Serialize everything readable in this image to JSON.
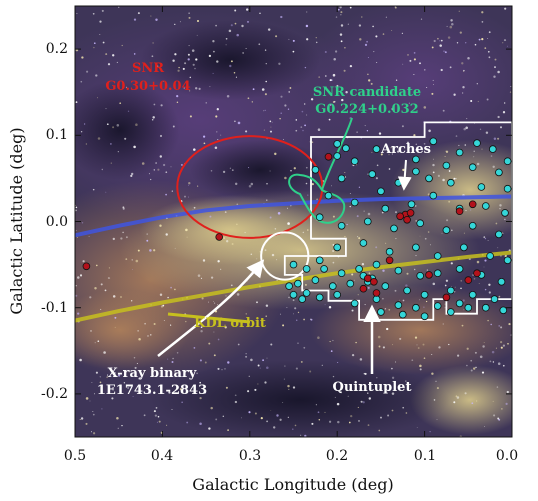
{
  "axes": {
    "xlabel": "Galactic Longitude (deg)",
    "ylabel": "Galactic Latitude (deg)",
    "xlim": [
      0.5,
      0.0
    ],
    "ylim": [
      -0.25,
      0.25
    ],
    "xticks": [
      "0.5",
      "0.4",
      "0.3",
      "0.2",
      "0.1",
      "0.0"
    ],
    "yticks": [
      "0.2",
      "0.1",
      "0.0",
      "-0.1",
      "-0.2"
    ]
  },
  "annotations": {
    "snr_title": "SNR",
    "snr_name": "G0.30+0.04",
    "snr_candidate_title": "SNR candidate",
    "snr_candidate_name": "G0.224+0.032",
    "arches": "Arches",
    "kdl_orbit": "KDL orbit",
    "xray_title": "X-ray binary",
    "xray_name": "1E1743.1-2843",
    "quintuplet": "Quintuplet"
  },
  "colors": {
    "snr": "#e0201c",
    "snr_candidate": "#2fd08a",
    "arches_track": "#3f55e0",
    "kdl_orbit": "#c7c01e",
    "outline": "#ffffff",
    "cyan_source": "#35d6d8",
    "red_source": "#b3121b"
  },
  "chart_data": {
    "type": "scatter",
    "xlabel": "Galactic Longitude (deg)",
    "ylabel": "Galactic Latitude (deg)",
    "xlim": [
      0.5,
      0.0
    ],
    "ylim": [
      -0.25,
      0.25
    ],
    "regions": {
      "snr_ellipse": {
        "l": 0.3,
        "b": 0.04,
        "rl": 0.083,
        "rb": 0.059
      },
      "xray_circle": {
        "l": 0.26,
        "b": -0.04,
        "r": 0.027
      },
      "survey_outline": [
        [
          0.23,
          0.098
        ],
        [
          0.1,
          0.098
        ],
        [
          0.1,
          0.115
        ],
        [
          0.0,
          0.115
        ],
        [
          0.0,
          -0.09
        ],
        [
          0.04,
          -0.09
        ],
        [
          0.04,
          -0.107
        ],
        [
          0.075,
          -0.107
        ],
        [
          0.075,
          -0.09
        ],
        [
          0.09,
          -0.09
        ],
        [
          0.09,
          -0.114
        ],
        [
          0.175,
          -0.114
        ],
        [
          0.175,
          -0.092
        ],
        [
          0.21,
          -0.092
        ],
        [
          0.21,
          -0.08
        ],
        [
          0.24,
          -0.08
        ],
        [
          0.24,
          -0.062
        ],
        [
          0.26,
          -0.062
        ],
        [
          0.26,
          -0.04
        ],
        [
          0.19,
          -0.04
        ],
        [
          0.19,
          -0.02
        ],
        [
          0.23,
          -0.02
        ],
        [
          0.23,
          0.098
        ]
      ]
    },
    "series": [
      {
        "name": "cyan",
        "points": [
          [
            0.09,
            0.093
          ],
          [
            0.06,
            0.08
          ],
          [
            0.04,
            0.091
          ],
          [
            0.022,
            0.084
          ],
          [
            0.075,
            0.065
          ],
          [
            0.045,
            0.063
          ],
          [
            0.015,
            0.057
          ],
          [
            0.11,
            0.072
          ],
          [
            0.155,
            0.084
          ],
          [
            0.2,
            0.076
          ],
          [
            0.18,
            0.07
          ],
          [
            0.225,
            0.06
          ],
          [
            0.195,
            0.05
          ],
          [
            0.16,
            0.055
          ],
          [
            0.13,
            0.045
          ],
          [
            0.095,
            0.05
          ],
          [
            0.07,
            0.045
          ],
          [
            0.035,
            0.04
          ],
          [
            0.005,
            0.038
          ],
          [
            0.21,
            0.03
          ],
          [
            0.18,
            0.022
          ],
          [
            0.145,
            0.015
          ],
          [
            0.115,
            0.02
          ],
          [
            0.06,
            0.015
          ],
          [
            0.03,
            0.018
          ],
          [
            0.008,
            0.01
          ],
          [
            0.22,
            0.005
          ],
          [
            0.195,
            -0.005
          ],
          [
            0.165,
            0.0
          ],
          [
            0.135,
            -0.008
          ],
          [
            0.105,
            -0.002
          ],
          [
            0.075,
            -0.01
          ],
          [
            0.045,
            -0.005
          ],
          [
            0.015,
            -0.015
          ],
          [
            0.2,
            -0.03
          ],
          [
            0.17,
            -0.025
          ],
          [
            0.14,
            -0.035
          ],
          [
            0.11,
            -0.03
          ],
          [
            0.085,
            -0.04
          ],
          [
            0.055,
            -0.03
          ],
          [
            0.025,
            -0.04
          ],
          [
            0.005,
            -0.045
          ],
          [
            0.25,
            -0.05
          ],
          [
            0.235,
            -0.055
          ],
          [
            0.215,
            -0.055
          ],
          [
            0.195,
            -0.06
          ],
          [
            0.175,
            -0.055
          ],
          [
            0.155,
            -0.05
          ],
          [
            0.13,
            -0.057
          ],
          [
            0.105,
            -0.063
          ],
          [
            0.085,
            -0.06
          ],
          [
            0.06,
            -0.055
          ],
          [
            0.035,
            -0.062
          ],
          [
            0.012,
            -0.07
          ],
          [
            0.245,
            -0.072
          ],
          [
            0.225,
            -0.068
          ],
          [
            0.205,
            -0.075
          ],
          [
            0.185,
            -0.072
          ],
          [
            0.165,
            -0.07
          ],
          [
            0.17,
            -0.063
          ],
          [
            0.16,
            -0.066
          ],
          [
            0.145,
            -0.075
          ],
          [
            0.12,
            -0.08
          ],
          [
            0.1,
            -0.085
          ],
          [
            0.07,
            -0.08
          ],
          [
            0.045,
            -0.085
          ],
          [
            0.02,
            -0.09
          ],
          [
            0.235,
            -0.083
          ],
          [
            0.22,
            -0.088
          ],
          [
            0.2,
            -0.085
          ],
          [
            0.18,
            -0.095
          ],
          [
            0.155,
            -0.09
          ],
          [
            0.13,
            -0.097
          ],
          [
            0.11,
            -0.1
          ],
          [
            0.085,
            -0.098
          ],
          [
            0.06,
            -0.095
          ],
          [
            0.03,
            -0.1
          ],
          [
            0.01,
            -0.103
          ],
          [
            0.15,
            -0.105
          ],
          [
            0.125,
            -0.108
          ],
          [
            0.1,
            -0.11
          ],
          [
            0.07,
            -0.105
          ],
          [
            0.05,
            -0.1
          ],
          [
            0.24,
            -0.09
          ],
          [
            0.255,
            -0.075
          ],
          [
            0.25,
            -0.085
          ],
          [
            0.22,
            -0.045
          ],
          [
            0.15,
            0.035
          ],
          [
            0.09,
            0.03
          ],
          [
            0.2,
            0.09
          ],
          [
            0.19,
            0.085
          ],
          [
            0.11,
            0.058
          ],
          [
            0.005,
            0.07
          ]
        ]
      },
      {
        "name": "red",
        "points": [
          [
            0.122,
            0.008
          ],
          [
            0.116,
            0.01
          ],
          [
            0.128,
            0.006
          ],
          [
            0.12,
            0.002
          ],
          [
            0.06,
            0.012
          ],
          [
            0.045,
            0.02
          ],
          [
            0.21,
            0.075
          ],
          [
            0.335,
            -0.018
          ],
          [
            0.487,
            -0.052
          ],
          [
            0.165,
            -0.066
          ],
          [
            0.158,
            -0.07
          ],
          [
            0.155,
            -0.083
          ],
          [
            0.17,
            -0.078
          ],
          [
            0.05,
            -0.068
          ],
          [
            0.14,
            -0.045
          ],
          [
            0.095,
            -0.062
          ],
          [
            0.075,
            -0.088
          ],
          [
            0.04,
            -0.06
          ]
        ]
      }
    ],
    "tracks": {
      "arches_track": [
        [
          0.5,
          -0.016
        ],
        [
          0.45,
          -0.005
        ],
        [
          0.4,
          0.005
        ],
        [
          0.35,
          0.013
        ],
        [
          0.3,
          0.018
        ],
        [
          0.25,
          0.021
        ],
        [
          0.2,
          0.024
        ],
        [
          0.15,
          0.026
        ],
        [
          0.1,
          0.027
        ],
        [
          0.05,
          0.028
        ],
        [
          0.0,
          0.029
        ]
      ],
      "kdl_orbit": [
        [
          0.5,
          -0.115
        ],
        [
          0.45,
          -0.104
        ],
        [
          0.4,
          -0.094
        ],
        [
          0.35,
          -0.085
        ],
        [
          0.3,
          -0.076
        ],
        [
          0.25,
          -0.068
        ],
        [
          0.2,
          -0.06
        ],
        [
          0.15,
          -0.053
        ],
        [
          0.1,
          -0.047
        ],
        [
          0.05,
          -0.041
        ],
        [
          0.0,
          -0.036
        ]
      ]
    }
  }
}
